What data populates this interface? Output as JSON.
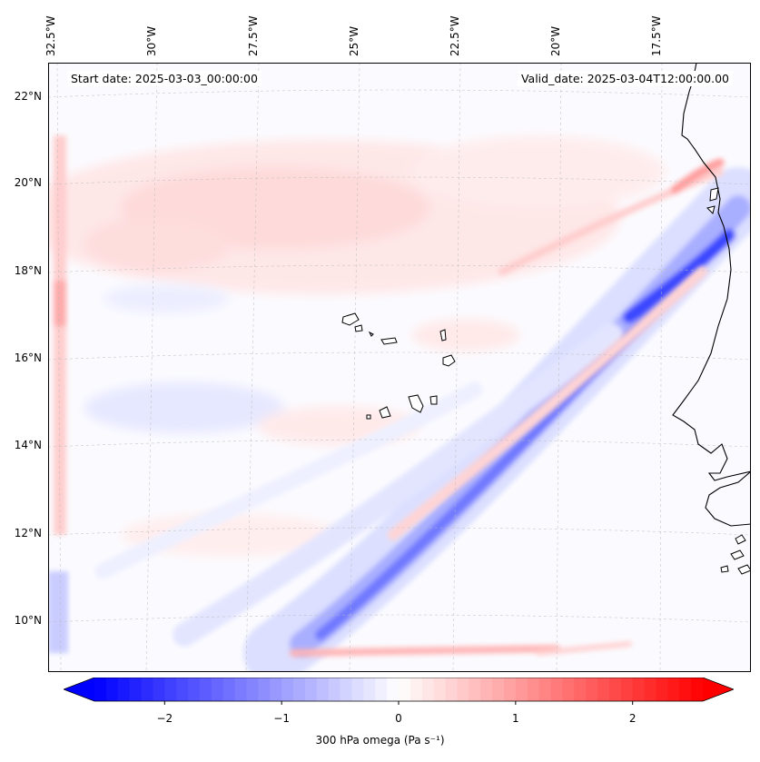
{
  "map": {
    "start_label": "Start date: 2025-03-03_00:00:00",
    "valid_label": "Valid_date: 2025-03-04T12:00:00.00",
    "longitude_labels": [
      "32.5°W",
      "30°W",
      "27.5°W",
      "25°W",
      "22.5°W",
      "20°W",
      "17.5°W"
    ],
    "latitude_labels": [
      "22°N",
      "20°N",
      "18°N",
      "16°N",
      "14°N",
      "12°N",
      "10°N"
    ],
    "field_colors": {
      "negative": "#0000ff",
      "neutral": "#ffffff",
      "positive": "#ff0000",
      "coast": "#000000",
      "grid": "#bbbbbb"
    }
  },
  "colorbar": {
    "label": "300 hPa omega (Pa s⁻¹)",
    "ticks": [
      "−2",
      "−1",
      "0",
      "1",
      "2"
    ],
    "tick_values": [
      -2,
      -1,
      0,
      1,
      2
    ],
    "range": [
      -2.6,
      2.6
    ]
  }
}
